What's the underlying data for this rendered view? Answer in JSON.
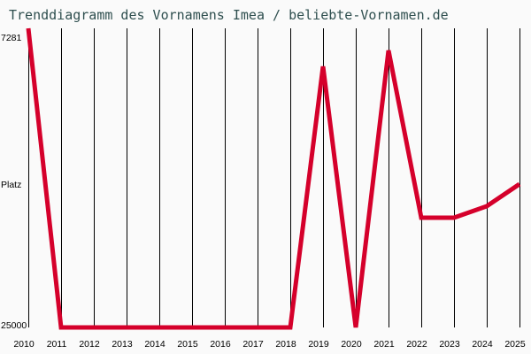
{
  "title": "Trenddiagramm des Vornamens Imea / beliebte-Vornamen.de",
  "colors": {
    "line": "#d5002b",
    "grid": "#000000",
    "background": "#fafafa",
    "title": "#2f4f4f"
  },
  "chart_data": {
    "type": "line",
    "title": "Trenddiagramm des Vornamens Imea / beliebte-Vornamen.de",
    "xlabel": "",
    "ylabel": "Platz",
    "y_inverted": true,
    "ylim": [
      7281,
      25000
    ],
    "y_tick_labels": [
      "7281",
      "Platz",
      "25000"
    ],
    "categories": [
      "2010",
      "2011",
      "2012",
      "2013",
      "2014",
      "2015",
      "2016",
      "2017",
      "2018",
      "2019",
      "2020",
      "2021",
      "2022",
      "2023",
      "2024",
      "2025"
    ],
    "series": [
      {
        "name": "Imea",
        "values": [
          7281,
          25000,
          25000,
          25000,
          25000,
          25000,
          25000,
          25000,
          25000,
          9535,
          25000,
          8592,
          18499,
          18499,
          17818,
          16507
        ]
      }
    ],
    "grid": {
      "vertical": true,
      "horizontal": false
    },
    "legend": null
  }
}
